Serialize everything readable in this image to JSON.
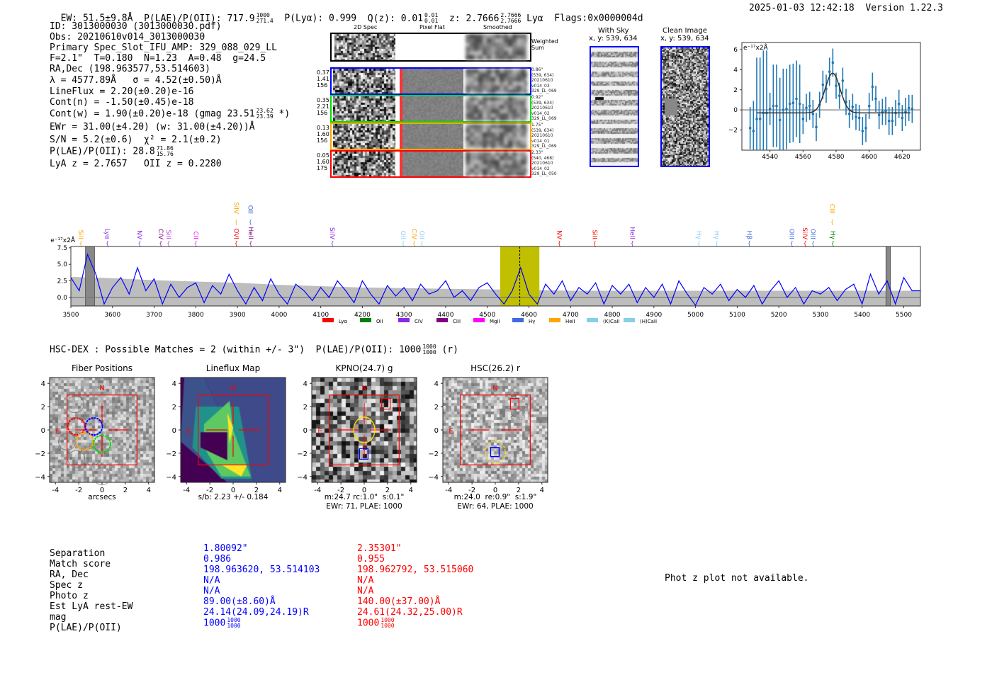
{
  "header": {
    "ew": "EW: 51.5±9.8Å",
    "plae_label": "P(LAE)/P(OII): 717.9",
    "plae_hi": "1000",
    "plae_lo": "271.4",
    "plya": "P(Lyα): 0.999",
    "qz_label": "Q(z): 0.01",
    "qz_hi": "0.01",
    "qz_lo": "0.01",
    "z_label": "z: 2.7666",
    "z_hi": "2.7666",
    "z_lo": "2.7666",
    "z_line": "Lyα",
    "flags": "Flags:0x0000004d",
    "timestamp": "2025-01-03 12:42:18",
    "version": "Version 1.22.3"
  },
  "info": {
    "id": "ID: 3013000030 (3013000030.pdf)",
    "obs": "Obs: 20210610v014_3013000030",
    "primary": "Primary Spec_Slot_IFU_AMP: 329_088_029_LL",
    "params": "F=2.1\"  T=0.180  N=1.23  A=0.48  g=24.5",
    "radec": "RA,Dec (198.963577,53.514603)",
    "lambda": "λ = 4577.89Å   σ = 4.52(±0.50)Å",
    "lineflux": "LineFlux = 2.20(±0.20)e-16",
    "contn": "Cont(n) = -1.50(±0.45)e-18",
    "contw": "Cont(w) = 1.90(±0.20)e-18 (gmag 23.51",
    "contw_hi": "23.62",
    "contw_lo": "23.39",
    "contw_tail": " *)",
    "ewr": "EWr = 31.00(±4.20) (w: 31.00(±4.20))Å",
    "sn": "S/N = 5.2(±0.6)  χ² = 2.1(±0.2)",
    "plae": "P(LAE)/P(OII): 28.8",
    "plae_hi": "71.86",
    "plae_lo": "15.76",
    "z": "LyA z = 2.7657   OII z = 0.2280"
  },
  "spec2d": {
    "col_titles": [
      "2D Spec",
      "Pixel Flat",
      "Smoothed"
    ],
    "weighted_label": "Weighted Sum",
    "rows": [
      {
        "color": "#0000ff",
        "left": [
          "0.37",
          "1.41",
          "156"
        ],
        "right": [
          "0.86\"",
          "(539, 634)",
          "20210610",
          "v014_03",
          "329_LL_069"
        ]
      },
      {
        "color": "#00dd00",
        "left": [
          "0.35",
          "2.21",
          "156"
        ],
        "right": [
          "0.92\"",
          "(539, 634)",
          "20210610",
          "v014_02",
          "329_LL_069"
        ]
      },
      {
        "color": "#ffa500",
        "left": [
          "0.13",
          "1.60",
          "156"
        ],
        "right": [
          "1.75\"",
          "(539, 634)",
          "20210610",
          "v014_01",
          "329_LL_069"
        ]
      },
      {
        "color": "#ff0000",
        "left": [
          "0.05",
          "1.60",
          "175"
        ],
        "right": [
          "2.33\"",
          "(540, 468)",
          "20210610",
          "v014_02",
          "329_LL_050"
        ]
      }
    ]
  },
  "ccd": {
    "with_sky_title": "With Sky",
    "with_sky_xy": "x, y: 539, 634",
    "clean_title": "Clean Image",
    "clean_xy": "x, y: 539, 634"
  },
  "hsc": {
    "title": "HSC-DEX : Possible Matches = 2 (within +/- 3\")  P(LAE)/P(OII): 1000",
    "hi": "1000",
    "lo": "1000",
    "tail": " (r)"
  },
  "panels": [
    {
      "title": "Fiber Positions",
      "caption1": "arcsecs",
      "caption2": ""
    },
    {
      "title": "Lineflux Map",
      "caption1": "s/b: 2.23 +/- 0.184",
      "caption2": ""
    },
    {
      "title": "KPNO(24.7) g",
      "caption1": "m:24.7 rc:1.0\"  s:0.1\"",
      "caption2": "EWr: 71, PLAE: 1000"
    },
    {
      "title": "HSC(26.2) r",
      "caption1": "m:24.0  re:0.9\"  s:1.9\"",
      "caption2": "EWr: 64, PLAE: 1000"
    }
  ],
  "panel_ticks": [
    "-4",
    "-2",
    "0",
    "2",
    "4"
  ],
  "panel_ticks_y": [
    "4",
    "2",
    "0",
    "−2",
    "−4"
  ],
  "compass": {
    "n": "N",
    "e": "E"
  },
  "matches": {
    "labels": [
      "Separation",
      "Match score",
      "RA, Dec",
      "Spec z",
      "Photo z",
      "Est LyA rest-EW",
      "mag",
      "P(LAE)/P(OII)"
    ],
    "blue": [
      "1.80092\"",
      "0.986",
      "198.963620, 53.514103",
      "N/A",
      "N/A",
      "89.00(±8.60)Å",
      "24.14(24.09,24.19)R",
      "1000"
    ],
    "red": [
      "2.35301\"",
      "0.955",
      "198.962792, 53.515060",
      "N/A",
      "N/A",
      "140.00(±37.00)Å",
      "24.61(24.32,25.00)R",
      "1000"
    ],
    "blue_plae_hi": "1000",
    "blue_plae_lo": "1000",
    "red_plae_hi": "1000",
    "red_plae_lo": "1000",
    "blue_color": "#0000ff",
    "red_color": "#ff0000"
  },
  "photz_message": "Phot z plot not available.",
  "chart_data": [
    {
      "type": "line",
      "name": "full-spectrum",
      "ylabel": "e⁻¹⁷x2Å",
      "xlim": [
        3500,
        5540
      ],
      "ylim": [
        -1.3,
        7.7
      ],
      "xticks": [
        3500,
        3600,
        3700,
        3800,
        3900,
        4000,
        4100,
        4200,
        4300,
        4400,
        4500,
        4600,
        4700,
        4800,
        4900,
        5000,
        5100,
        5200,
        5300,
        5400,
        5500
      ],
      "yticks": [
        0.0,
        2.5,
        5.0,
        7.5
      ],
      "ytick_labels": [
        "0.0",
        "2.5",
        "5.0",
        "7.5"
      ],
      "x_start": 3500,
      "x_step": 20,
      "values": [
        3.0,
        1.0,
        6.5,
        3.5,
        -1.0,
        1.5,
        3.0,
        0.5,
        4.5,
        1.0,
        2.8,
        -1.0,
        2.0,
        0.0,
        1.5,
        2.2,
        -0.8,
        1.8,
        0.5,
        3.5,
        1.0,
        -1.0,
        1.5,
        -0.5,
        2.8,
        0.5,
        -1.0,
        2.0,
        1.0,
        -0.5,
        1.5,
        0.0,
        2.5,
        1.0,
        -0.8,
        2.5,
        0.5,
        -1.0,
        1.8,
        0.2,
        1.5,
        -0.5,
        2.0,
        0.5,
        1.0,
        2.5,
        0.0,
        1.0,
        -0.5,
        1.5,
        2.2,
        0.5,
        -1.0,
        1.0,
        4.5,
        0.5,
        -1.0,
        2.0,
        0.5,
        2.5,
        -0.5,
        1.5,
        0.5,
        2.2,
        -1.0,
        1.8,
        0.5,
        2.0,
        -0.8,
        1.5,
        0.0,
        2.0,
        -1.0,
        2.5,
        0.5,
        -1.2,
        1.5,
        0.5,
        2.0,
        -0.5,
        1.2,
        0.0,
        1.8,
        -1.0,
        1.0,
        2.5,
        0.0,
        1.5,
        -1.0,
        1.0,
        0.5,
        1.5,
        -0.5,
        1.2,
        2.0,
        -1.0,
        3.5,
        0.5,
        2.5,
        -1.0,
        3.0,
        1.0,
        1.0
      ],
      "noise_band": [
        [
          3500,
          3.1
        ],
        [
          3600,
          2.9
        ],
        [
          3700,
          2.6
        ],
        [
          3800,
          2.4
        ],
        [
          3900,
          2.2
        ],
        [
          4000,
          1.9
        ],
        [
          4100,
          1.7
        ],
        [
          4200,
          1.5
        ],
        [
          4300,
          1.4
        ],
        [
          4400,
          1.3
        ],
        [
          4530,
          1.2
        ],
        [
          4700,
          1.0
        ],
        [
          5000,
          1.0
        ],
        [
          5300,
          1.0
        ],
        [
          5540,
          1.0
        ]
      ],
      "highlight_range": [
        4531,
        4625
      ],
      "line_center": 4578,
      "masked_ranges": [
        [
          3535,
          3557
        ],
        [
          5457,
          5468
        ]
      ],
      "line_labels": [
        {
          "label": "SiII",
          "w": 3524,
          "color": "#ffa500",
          "row": "low"
        },
        {
          "label": "Lyα",
          "w": 3588,
          "color": "#8a2be2",
          "row": "low"
        },
        {
          "label": "NV",
          "w": 3665,
          "color": "#8a2be2",
          "row": "low"
        },
        {
          "label": "CIV",
          "w": 3716,
          "color": "#800080",
          "row": "low"
        },
        {
          "label": "SiII",
          "w": 3731,
          "color": "#b040e0",
          "row": "low"
        },
        {
          "label": "CII",
          "w": 3800,
          "color": "#ff00ff",
          "row": "low"
        },
        {
          "label": "OVI",
          "w": 3897,
          "color": "#ff0000",
          "row": "low"
        },
        {
          "label": "SiIV",
          "w": 3897,
          "color": "#ffa500",
          "row": "high"
        },
        {
          "label": "OII",
          "w": 3931,
          "color": "#4169e1",
          "row": "high"
        },
        {
          "label": "HeII",
          "w": 3932,
          "color": "#800080",
          "row": "low"
        },
        {
          "label": "SiIV",
          "w": 4128,
          "color": "#8a2be2",
          "row": "low"
        },
        {
          "label": "OII",
          "w": 4298,
          "color": "#87cefa",
          "row": "low"
        },
        {
          "label": "CIV",
          "w": 4324,
          "color": "#ffa500",
          "row": "low"
        },
        {
          "label": "OII",
          "w": 4339,
          "color": "#87cefa",
          "row": "low"
        },
        {
          "label": "NV",
          "w": 4673,
          "color": "#ff0000",
          "row": "low"
        },
        {
          "label": "SiII",
          "w": 4758,
          "color": "#ff0000",
          "row": "low"
        },
        {
          "label": "HeII",
          "w": 4848,
          "color": "#8a2be2",
          "row": "low"
        },
        {
          "label": "Hγ",
          "w": 5008,
          "color": "#87cefa",
          "row": "low"
        },
        {
          "label": "Hγ",
          "w": 5051,
          "color": "#87cefa",
          "row": "low"
        },
        {
          "label": "Hβ",
          "w": 5129,
          "color": "#4169e1",
          "row": "low"
        },
        {
          "label": "OIII",
          "w": 5231,
          "color": "#4169e1",
          "row": "low"
        },
        {
          "label": "SiIV",
          "w": 5263,
          "color": "#ff0000",
          "row": "low"
        },
        {
          "label": "OIII",
          "w": 5282,
          "color": "#4169e1",
          "row": "low"
        },
        {
          "label": "CIII",
          "w": 5328,
          "color": "#ffa500",
          "row": "high"
        },
        {
          "label": "Hγ",
          "w": 5330,
          "color": "#008000",
          "row": "low"
        }
      ],
      "legend": [
        {
          "label": "Lyα",
          "color": "#ff0000"
        },
        {
          "label": "OII",
          "color": "#008000"
        },
        {
          "label": "CIV",
          "color": "#8a2be2"
        },
        {
          "label": "CIII",
          "color": "#800080"
        },
        {
          "label": "MgII",
          "color": "#ff00ff"
        },
        {
          "label": "Hγ",
          "color": "#4169e1"
        },
        {
          "label": "HeII",
          "color": "#ffa500"
        },
        {
          "label": "(K)CaII",
          "color": "#87ceeb"
        },
        {
          "label": "(H)CaII",
          "color": "#87ceeb"
        }
      ],
      "legend_position": "bottom-center",
      "colors": {
        "spectrum": "#0000ff",
        "noise": "#bdbdbd",
        "highlight": "#c0c000",
        "mask": "#888888"
      }
    },
    {
      "type": "scatter",
      "name": "line-fit",
      "ylabel": "e⁻¹⁷x2Å",
      "xlim": [
        4523,
        4631
      ],
      "ylim": [
        -4.0,
        6.7
      ],
      "xticks": [
        4540,
        4560,
        4580,
        4600,
        4620
      ],
      "yticks": [
        -2,
        0,
        2,
        4,
        6
      ],
      "ytick_labels": [
        "−2",
        "0",
        "2",
        "4",
        "6"
      ],
      "x": [
        4528,
        4530,
        4532,
        4534,
        4536,
        4538,
        4540,
        4542,
        4544,
        4546,
        4548,
        4550,
        4552,
        4554,
        4556,
        4558,
        4560,
        4562,
        4564,
        4566,
        4568,
        4570,
        4572,
        4574,
        4576,
        4578,
        4580,
        4582,
        4584,
        4586,
        4588,
        4590,
        4592,
        4594,
        4596,
        4598,
        4600,
        4602,
        4604,
        4606,
        4608,
        4610,
        4612,
        4614,
        4616,
        4618,
        4620,
        4622,
        4624,
        4626
      ],
      "y": [
        -1.8,
        -2.1,
        -0.9,
        -0.9,
        -0.3,
        -0.3,
        0.1,
        0.4,
        0.4,
        -1.0,
        0.0,
        0.1,
        0.6,
        0.7,
        1.1,
        0.6,
        -0.9,
        0.2,
        0.4,
        -0.4,
        -1.7,
        0.5,
        2.5,
        2.1,
        3.8,
        4.7,
        2.4,
        1.4,
        2.9,
        0.8,
        -0.4,
        0.3,
        -0.7,
        -0.8,
        -2.1,
        -1.8,
        0.4,
        2.3,
        1.1,
        -0.5,
        -0.2,
        -0.1,
        -1.1,
        -1.1,
        -0.3,
        0.6,
        -0.8,
        -0.2,
        0.2,
        0.1
      ],
      "yerr": [
        2.1,
        3.0,
        6.1,
        6.1,
        6.2,
        6.2,
        1.6,
        4.1,
        4.1,
        4.2,
        4.1,
        4.0,
        3.9,
        3.9,
        3.8,
        3.9,
        1.5,
        1.4,
        1.4,
        1.4,
        1.4,
        1.3,
        1.4,
        1.4,
        1.4,
        1.4,
        1.3,
        1.3,
        1.3,
        1.3,
        1.4,
        1.3,
        1.3,
        1.3,
        1.4,
        1.4,
        1.3,
        1.4,
        1.3,
        1.4,
        1.3,
        1.4,
        1.4,
        1.4,
        1.3,
        1.4,
        1.3,
        1.4,
        1.3,
        1.4
      ],
      "fit": {
        "model": "gaussian",
        "mu": 4577.89,
        "sigma": 4.52,
        "amplitude": 3.95,
        "baseline": -0.3,
        "range": [
          4532,
          4625
        ]
      },
      "colors": {
        "points": "#1f77b4",
        "fit": "#333333"
      }
    }
  ]
}
